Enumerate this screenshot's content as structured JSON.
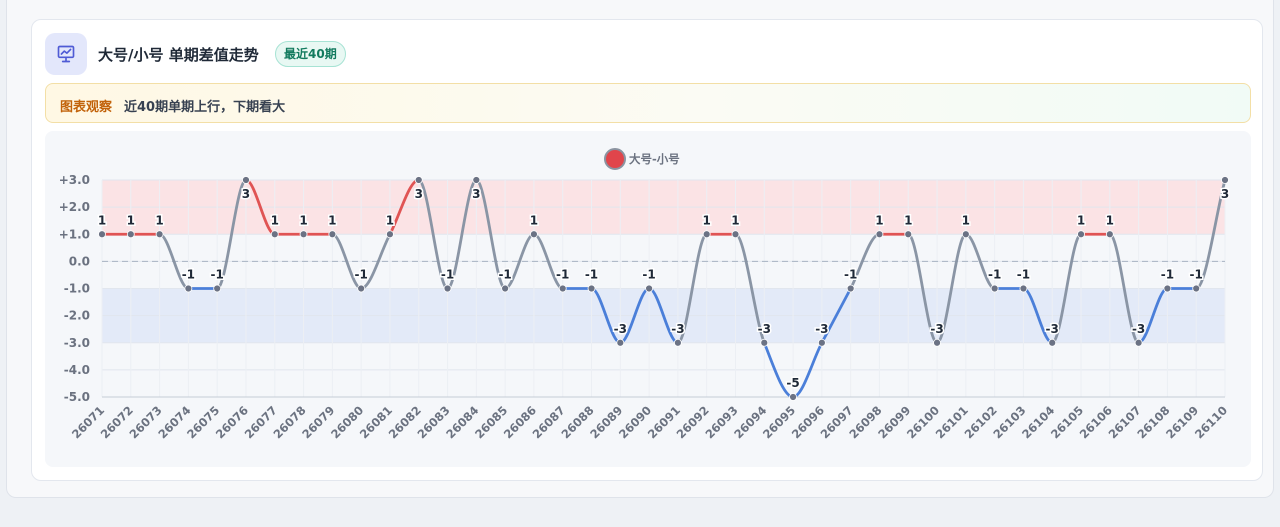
{
  "header": {
    "title": "大号/小号 单期差值走势",
    "badge": "最近40期"
  },
  "observation": {
    "label": "图表观察",
    "text": "近40期单期上行，下期看大"
  },
  "colors": {
    "up": "#e05454",
    "down": "#4b7fd9",
    "neutral": "#8a95a5",
    "point": "#6b7284",
    "band_high": "#fbe3e5",
    "band_low": "#e3eaf8",
    "accent_icon": "#4f5bd5",
    "legend_dot": "#e0454b"
  },
  "chart_data": {
    "type": "line",
    "title": "",
    "xlabel": "",
    "ylabel": "",
    "legend": {
      "position": "top-center"
    },
    "categories": [
      "26071",
      "26072",
      "26073",
      "26074",
      "26075",
      "26076",
      "26077",
      "26078",
      "26079",
      "26080",
      "26081",
      "26082",
      "26083",
      "26084",
      "26085",
      "26086",
      "26087",
      "26088",
      "26089",
      "26090",
      "26091",
      "26092",
      "26093",
      "26094",
      "26095",
      "26096",
      "26097",
      "26098",
      "26099",
      "26100",
      "26101",
      "26102",
      "26103",
      "26104",
      "26105",
      "26106",
      "26107",
      "26108",
      "26109",
      "26110"
    ],
    "series": [
      {
        "name": "大号-小号",
        "values": [
          1,
          1,
          1,
          -1,
          -1,
          3,
          1,
          1,
          1,
          -1,
          1,
          3,
          -1,
          3,
          -1,
          1,
          -1,
          -1,
          -3,
          -1,
          -3,
          1,
          1,
          -3,
          -5,
          -3,
          -1,
          1,
          1,
          -3,
          1,
          -1,
          -1,
          -3,
          1,
          1,
          -3,
          -1,
          -1,
          3
        ]
      }
    ],
    "ylim": [
      -5,
      3
    ],
    "yticks": [
      3,
      2,
      1,
      0,
      -1,
      -2,
      -3,
      -4,
      -5
    ],
    "ytick_labels": [
      "+3.0",
      "+2.0",
      "+1.0",
      "0.0",
      "-1.0",
      "-2.0",
      "-3.0",
      "-4.0",
      "-5.0"
    ],
    "bands": [
      {
        "from": 1,
        "to": 3,
        "kind": "high"
      },
      {
        "from": -3,
        "to": -1,
        "kind": "low"
      }
    ],
    "reference_line": 0,
    "grid": true
  }
}
